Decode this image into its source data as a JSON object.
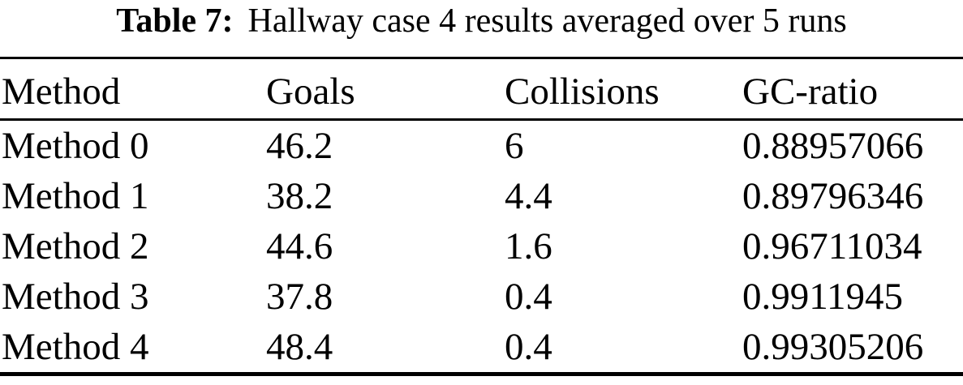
{
  "caption": {
    "label": "Table 7:",
    "text": "Hallway case 4 results averaged over 5 runs"
  },
  "table": {
    "headers": [
      "Method",
      "Goals",
      "Collisions",
      "GC-ratio"
    ],
    "rows": [
      [
        "Method 0",
        "46.2",
        "6",
        "0.88957066"
      ],
      [
        "Method 1",
        "38.2",
        "4.4",
        "0.89796346"
      ],
      [
        "Method 2",
        "44.6",
        "1.6",
        "0.96711034"
      ],
      [
        "Method 3",
        "37.8",
        "0.4",
        "0.9911945"
      ],
      [
        "Method 4",
        "48.4",
        "0.4",
        "0.99305206"
      ]
    ]
  },
  "colors": {
    "text": "#000000",
    "background": "#ffffff",
    "rule": "#000000"
  }
}
